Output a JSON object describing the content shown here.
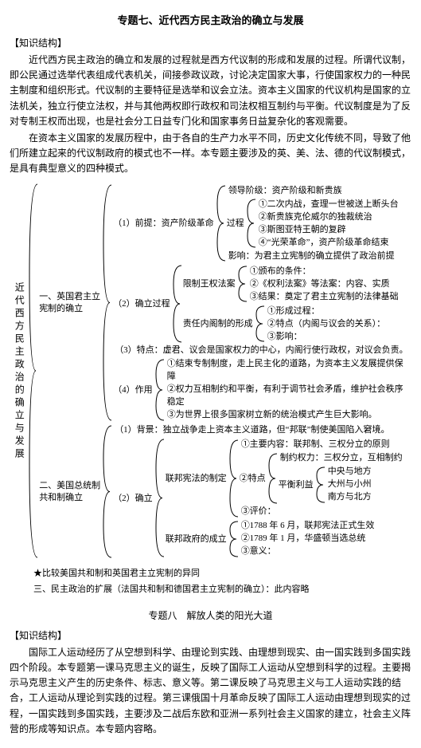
{
  "topic7": {
    "title": "专题七、近代西方民主政治的确立与发展",
    "label_knowledge": "【知识结构】",
    "intro": [
      "近代西方民主政治的确立和发展的过程就是西方代议制的形成和发展的过程。所谓代议制，即公民通过选举代表组成代表机关，间接参政议政，讨论决定国家大事，行使国家权力的一种民主制度和组织形式。代议制的主要特征是选举和议会立法。资本主义国家的代议机构是国家的立法机关，独立行使立法权，并与其他两权即行政权和司法权相互制约与平衡。代议制度是为了反对专制王权而出现，也是社会分工日益专门化和国家事务日益复杂化的客观需要。",
      "在资本主义国家的发展历程中，由于各自的生产力水平不同，历史文化传统不同，导致了他们所建立起来的代议制政府的模式也不一样。本专题主要涉及的英、美、法、德的代议制模式，是具有典型意义的四种模式。"
    ],
    "root_label": "近代西方民主政治的确立与发展",
    "branches": [
      {
        "label": "一、英国君主立\n宪制的确立",
        "children": [
          {
            "label": "（1）前提：资产阶级革命",
            "children": [
              {
                "leaf": "领导阶级：资产阶级和新贵族"
              },
              {
                "label": "过程",
                "children": [
                  {
                    "leaf": "①二次内战，查理一世被送上断头台"
                  },
                  {
                    "leaf": "②新贵族克伦威尔的独裁统治"
                  },
                  {
                    "leaf": "③斯图亚特王朝的复辟"
                  },
                  {
                    "leaf": "④“光荣革命”，资产阶级革命结束"
                  }
                ]
              },
              {
                "leaf": "影响：为君主立宪制的确立提供了政治前提"
              }
            ]
          },
          {
            "label": "（2）确立过程",
            "children": [
              {
                "label": "限制王权法案",
                "children": [
                  {
                    "leaf": "①颁布的条件："
                  },
                  {
                    "leaf": "②《权利法案》等法案：内容、实质"
                  },
                  {
                    "leaf": "③结果：奠定了君主立宪制的法律基础"
                  }
                ]
              },
              {
                "label": "责任内阁制的形成",
                "children": [
                  {
                    "leaf": "①形成过程："
                  },
                  {
                    "leaf": "②特点（内阁与议会的关系）："
                  },
                  {
                    "leaf": "③影响："
                  }
                ]
              }
            ]
          },
          {
            "leaf": "（3）特点：虚君、议会是国家权力的中心，内阁行使行政权，对议会负责。"
          },
          {
            "label": "（4）作用",
            "children": [
              {
                "leaf": "①结束专制制度，走上民主化的道路，为资本主义发展提供保障"
              },
              {
                "leaf": "②权力互相制约和平衡，有利于调节社会矛盾，维护社会秩序稳定"
              },
              {
                "leaf": "③为世界上很多国家树立新的统治模式产生巨大影响。"
              }
            ]
          }
        ]
      },
      {
        "label": "二、美国总统制\n共和制确立",
        "children": [
          {
            "leaf": "（1）背景：独立战争走上资本主义道路，但“邦联”制使美国陷入窘境。"
          },
          {
            "label": "（2）确立",
            "children": [
              {
                "label": "联邦宪法的制定",
                "children": [
                  {
                    "leaf": "①主要内容：联邦制、三权分立的原则"
                  },
                  {
                    "label": "②特点",
                    "children": [
                      {
                        "leaf": "制约权力：三权分立，互相制约"
                      },
                      {
                        "label": "平衡利益",
                        "children": [
                          {
                            "leaf": "中央与地方"
                          },
                          {
                            "leaf": "大州与小州"
                          },
                          {
                            "leaf": "南方与北方"
                          }
                        ]
                      }
                    ]
                  },
                  {
                    "leaf": "③评价："
                  }
                ]
              },
              {
                "label": "联邦政府的成立",
                "children": [
                  {
                    "leaf": "①1788 年 6 月，联邦宪法正式生效"
                  },
                  {
                    "leaf": "②1789 年 1 月，华盛顿当选总统"
                  },
                  {
                    "leaf": "③意义："
                  }
                ]
              }
            ]
          }
        ]
      }
    ],
    "starline": "★比较美国共和制和英国君主立宪制的异同",
    "line3": "三、民主政治的扩展（法国共和制和德国君主立宪制的确立）：此内容略"
  },
  "topic8": {
    "title": "专题八　解放人类的阳光大道",
    "label_knowledge": "【知识结构】",
    "intro": [
      "国际工人运动经历了从空想到科学、由理论到实践、由理想到现实、由一国实践到多国实践四个阶段。本专题第一课马克思主义的诞生，反映了国际工人运动从空想到科学的过程。主要揭示马克思主义产生的历史条件、标志、意义等。第二课反映了马克思主义与工人运动实践的结合，工人运动从理论到实践的过程。第三课俄国十月革命反映了国际工人运动由理想到现实的过程，一国实践到多国实践，主要涉及二战后东欧和亚洲一系列社会主义国家的建立，社会主义阵营的形成等知识点。本专题内容略。"
    ]
  }
}
